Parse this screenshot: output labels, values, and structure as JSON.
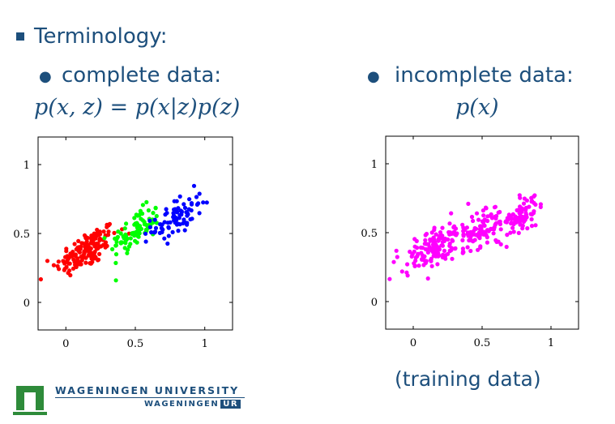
{
  "slide": {
    "heading": "Terminology:",
    "left_bullet": "complete data:",
    "left_formula": "p(x, z) = p(x|z)p(z)",
    "right_bullet": "incomplete data:",
    "right_formula": "p(x)",
    "caption": "(training data)"
  },
  "logo": {
    "line1": "WAGENINGEN UNIVERSITY",
    "line2a": "WAGENINGEN",
    "line2b": "UR",
    "colors": {
      "green": "#2e8b3a",
      "blue": "#1d4f7c"
    }
  },
  "colors": {
    "red": "#ff0000",
    "green": "#00ff00",
    "blue": "#0000ff",
    "magenta": "#ff00ff",
    "text": "#1d4f7c"
  },
  "chart_data": [
    {
      "type": "scatter",
      "title": "",
      "xlabel": "",
      "ylabel": "",
      "xlim": [
        -0.2,
        1.2
      ],
      "ylim": [
        -0.2,
        1.2
      ],
      "xticks": [
        "0",
        "0.5",
        "1"
      ],
      "yticks": [
        "0",
        "0.5",
        "1"
      ],
      "grid": false,
      "series": [
        {
          "color": "#ff0000",
          "cluster": {
            "center": [
              0.15,
              0.38
            ],
            "spread": [
              0.11,
              0.09
            ],
            "n": 150
          }
        },
        {
          "color": "#00ff00",
          "cluster": {
            "center": [
              0.5,
              0.52
            ],
            "spread": [
              0.09,
              0.09
            ],
            "n": 90
          }
        },
        {
          "color": "#0000ff",
          "cluster": {
            "center": [
              0.8,
              0.62
            ],
            "spread": [
              0.09,
              0.09
            ],
            "n": 80
          }
        }
      ]
    },
    {
      "type": "scatter",
      "title": "",
      "xlabel": "",
      "ylabel": "",
      "xlim": [
        -0.2,
        1.2
      ],
      "ylim": [
        -0.2,
        1.2
      ],
      "xticks": [
        "0",
        "0.5",
        "1"
      ],
      "yticks": [
        "0",
        "0.5",
        "1"
      ],
      "grid": false,
      "series": [
        {
          "color": "#ff00ff",
          "clusters": [
            {
              "center": [
                0.15,
                0.38
              ],
              "spread": [
                0.11,
                0.09
              ],
              "n": 150
            },
            {
              "center": [
                0.5,
                0.52
              ],
              "spread": [
                0.09,
                0.09
              ],
              "n": 90
            },
            {
              "center": [
                0.8,
                0.62
              ],
              "spread": [
                0.09,
                0.09
              ],
              "n": 80
            }
          ]
        }
      ]
    }
  ]
}
